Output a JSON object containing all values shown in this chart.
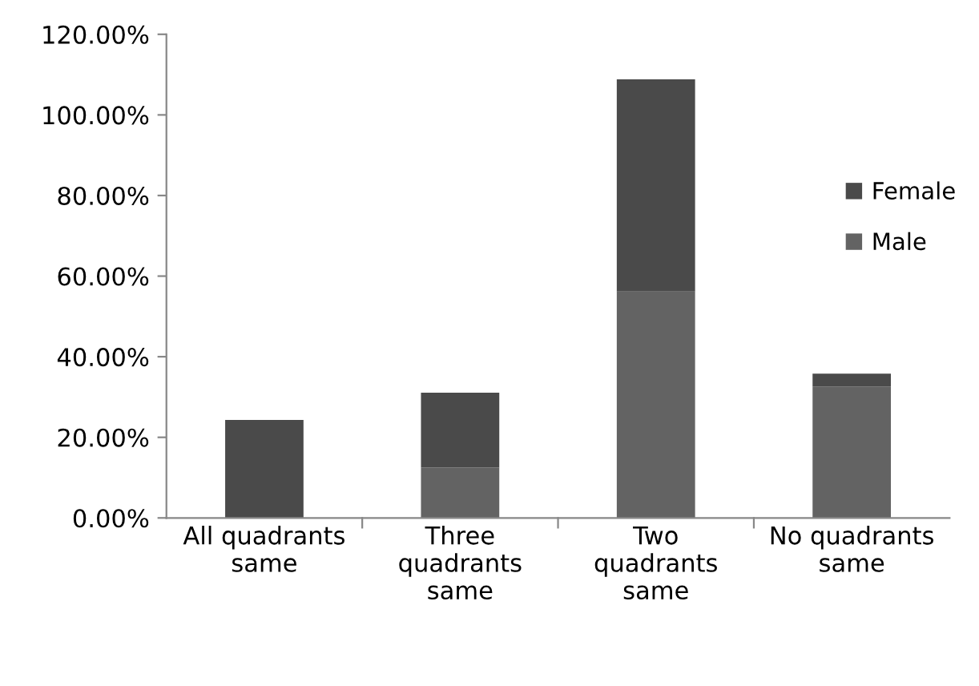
{
  "chart_data": {
    "type": "bar",
    "stacked": true,
    "categories": [
      "All quadrants\nsame",
      "Three\nquadrants\nsame",
      "Two\nquadrants\nsame",
      "No quadrants\nsame"
    ],
    "series": [
      {
        "name": "Male",
        "color": "#636363",
        "values": [
          0,
          12.5,
          56.2,
          32.6
        ]
      },
      {
        "name": "Female",
        "color": "#4a4a4a",
        "values": [
          24.3,
          18.6,
          52.6,
          3.2
        ]
      }
    ],
    "ylim": [
      0,
      120
    ],
    "yticks": [
      {
        "value": 0,
        "label": "0.00%"
      },
      {
        "value": 20,
        "label": "20.00%"
      },
      {
        "value": 40,
        "label": "40.00%"
      },
      {
        "value": 60,
        "label": "60.00%"
      },
      {
        "value": 80,
        "label": "80.00%"
      },
      {
        "value": 100,
        "label": "100.00%"
      },
      {
        "value": 120,
        "label": "120.00%"
      }
    ],
    "grid": false,
    "legend": "right"
  }
}
